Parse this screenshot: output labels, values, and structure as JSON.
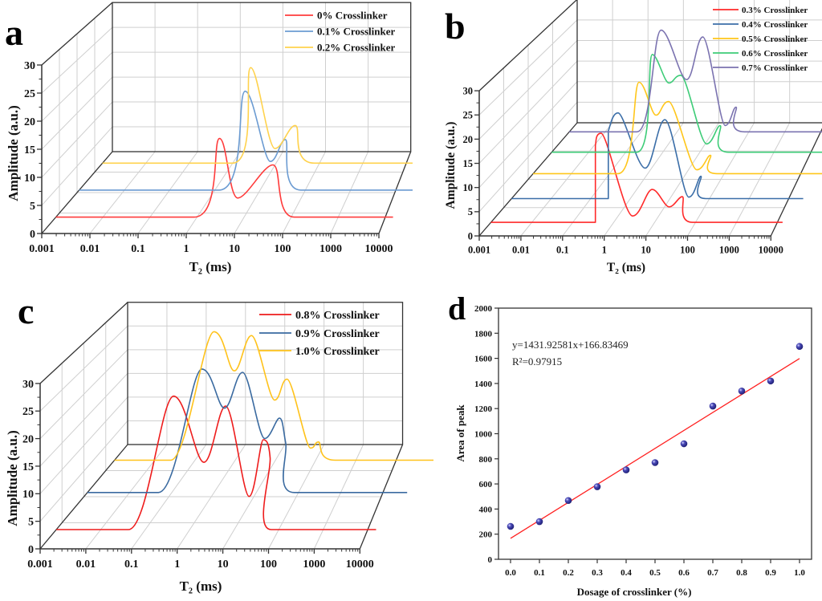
{
  "chart_data": [
    {
      "panel": "a",
      "type": "line",
      "style": "3d-waterfall",
      "xlabel": "T₂ (ms)",
      "ylabel": "Amplitude (a.u.)",
      "xscale": "log",
      "xlim": [
        0.001,
        10000
      ],
      "ylim": [
        0,
        30
      ],
      "xticks": [
        "0.001",
        "0.01",
        "0.1",
        "1",
        "10",
        "100",
        "1000",
        "10000"
      ],
      "yticks": [
        "0",
        "5",
        "10",
        "15",
        "20",
        "25",
        "30"
      ],
      "grid": true,
      "legend_position": "top-right",
      "series": [
        {
          "name": "0% Crosslinker",
          "color": "#ff3b3b",
          "points": [
            [
              0.001,
              0
            ],
            [
              0.74,
              0
            ],
            [
              2.5,
              14
            ],
            [
              6,
              3.4
            ],
            [
              32,
              9.3
            ],
            [
              89,
              0
            ],
            [
              10000,
              0
            ]
          ]
        },
        {
          "name": "0.1% Crosslinker",
          "color": "#6b9bd2",
          "points": [
            [
              0.001,
              0
            ],
            [
              0.8,
              0
            ],
            [
              2.8,
              17.6
            ],
            [
              9.3,
              5.1
            ],
            [
              19,
              9
            ],
            [
              40,
              0
            ],
            [
              10000,
              0
            ]
          ]
        },
        {
          "name": "0.2% Crosslinker",
          "color": "#ffd24d",
          "points": [
            [
              0.001,
              0
            ],
            [
              0.5,
              0
            ],
            [
              1.2,
              17
            ],
            [
              3.8,
              2.6
            ],
            [
              10,
              6.7
            ],
            [
              25,
              0
            ],
            [
              10000,
              0
            ]
          ]
        }
      ]
    },
    {
      "panel": "b",
      "type": "line",
      "style": "3d-waterfall",
      "xlabel": "T₂ (ms)",
      "ylabel": "Amplitude (a.u.)",
      "xscale": "log",
      "xlim": [
        0.001,
        10000
      ],
      "ylim": [
        0,
        30
      ],
      "xticks": [
        "0.001",
        "0.01",
        "0.1",
        "1",
        "10",
        "100",
        "1000",
        "10000"
      ],
      "yticks": [
        "0",
        "5",
        "10",
        "15",
        "20",
        "25",
        "30"
      ],
      "grid": true,
      "legend_position": "top-right",
      "series": [
        {
          "name": "0.3% Crosslinker",
          "color": "#ff2a2a",
          "points": [
            [
              0.001,
              0
            ],
            [
              0.32,
              0
            ],
            [
              0.32,
              16
            ],
            [
              0.44,
              18.4
            ],
            [
              2.5,
              1.3
            ],
            [
              7.4,
              6.8
            ],
            [
              19,
              3.2
            ],
            [
              39,
              5.3
            ],
            [
              69,
              0
            ],
            [
              10000,
              0
            ]
          ]
        },
        {
          "name": "0.4% Crosslinker",
          "color": "#3b6ea8",
          "points": [
            [
              0.001,
              0
            ],
            [
              0.21,
              0
            ],
            [
              0.21,
              14
            ],
            [
              0.36,
              17.7
            ],
            [
              1.6,
              6.3
            ],
            [
              4.8,
              16.3
            ],
            [
              18,
              0.3
            ],
            [
              35,
              4.6
            ],
            [
              46,
              0
            ],
            [
              10000,
              0
            ]
          ]
        },
        {
          "name": "0.5% Crosslinker",
          "color": "#ffc61a",
          "points": [
            [
              0.001,
              0
            ],
            [
              0.11,
              0
            ],
            [
              0.35,
              18.9
            ],
            [
              0.89,
              12.1
            ],
            [
              1.8,
              14.9
            ],
            [
              8.5,
              0.8
            ],
            [
              18,
              3.8
            ],
            [
              26,
              0
            ],
            [
              10000,
              0
            ]
          ]
        },
        {
          "name": "0.6% Crosslinker",
          "color": "#3dcc77",
          "points": [
            [
              0.001,
              0
            ],
            [
              0.11,
              0
            ],
            [
              0.26,
              20.2
            ],
            [
              0.65,
              14.3
            ],
            [
              1.26,
              15.9
            ],
            [
              5.2,
              1.7
            ],
            [
              11,
              5.5
            ],
            [
              18,
              0
            ],
            [
              10000,
              0
            ]
          ]
        },
        {
          "name": "0.7% Crosslinker",
          "color": "#7b73b0",
          "points": [
            [
              0.001,
              0
            ],
            [
              0.042,
              0
            ],
            [
              0.16,
              21
            ],
            [
              0.65,
              10.8
            ],
            [
              1.6,
              19.6
            ],
            [
              5.5,
              1.3
            ],
            [
              10,
              5.1
            ],
            [
              16,
              0
            ],
            [
              10000,
              0
            ]
          ]
        }
      ]
    },
    {
      "panel": "c",
      "type": "line",
      "style": "3d-waterfall",
      "xlabel": "T₂ (ms)",
      "ylabel": "Amplitude (a.u.)",
      "xscale": "log",
      "xlim": [
        0.001,
        10000
      ],
      "ylim": [
        0,
        30
      ],
      "xticks": [
        "0.001",
        "0.01",
        "0.1",
        "1",
        "10",
        "100",
        "1000",
        "10000"
      ],
      "yticks": [
        "0",
        "5",
        "10",
        "15",
        "20",
        "25",
        "30"
      ],
      "grid": true,
      "legend_position": "top-right",
      "series": [
        {
          "name": "0.8% Crosslinker",
          "color": "#ee1c1c",
          "points": [
            [
              0.001,
              0
            ],
            [
              0.038,
              0
            ],
            [
              0.37,
              24.2
            ],
            [
              1.7,
              12.2
            ],
            [
              5.1,
              22.4
            ],
            [
              16.6,
              6
            ],
            [
              34,
              16.3
            ],
            [
              48,
              13
            ],
            [
              51,
              0
            ],
            [
              10000,
              0
            ]
          ]
        },
        {
          "name": "0.9% Crosslinker",
          "color": "#3a6aa0",
          "points": [
            [
              0.001,
              0
            ],
            [
              0.036,
              0
            ],
            [
              0.32,
              22.4
            ],
            [
              1.0,
              15.3
            ],
            [
              2.5,
              21.8
            ],
            [
              7.6,
              9.8
            ],
            [
              16,
              13.5
            ],
            [
              22,
              9
            ],
            [
              34,
              0
            ],
            [
              10000,
              0
            ]
          ]
        },
        {
          "name": "1.0% Crosslinker",
          "color": "#ffc21a",
          "points": [
            [
              0.001,
              0
            ],
            [
              0.017,
              0
            ],
            [
              0.15,
              23.3
            ],
            [
              0.42,
              16.2
            ],
            [
              1.0,
              22.6
            ],
            [
              3.2,
              10.9
            ],
            [
              6,
              14.7
            ],
            [
              19.5,
              2.2
            ],
            [
              29,
              3.3
            ],
            [
              68,
              0
            ],
            [
              10000,
              0
            ]
          ]
        }
      ]
    },
    {
      "panel": "d",
      "type": "scatter",
      "xlabel": "Dosage of crosslinker (%)",
      "ylabel": "Area of peak",
      "xlim": [
        0,
        1.0
      ],
      "ylim": [
        0,
        2000
      ],
      "xticks": [
        "0.0",
        "0.1",
        "0.2",
        "0.3",
        "0.4",
        "0.5",
        "0.6",
        "0.7",
        "0.8",
        "0.9",
        "1.0"
      ],
      "yticks": [
        "0",
        "200",
        "400",
        "600",
        "800",
        "1000",
        "1200",
        "1400",
        "1600",
        "1800",
        "2000"
      ],
      "grid": false,
      "x": [
        0.0,
        0.1,
        0.2,
        0.3,
        0.4,
        0.5,
        0.6,
        0.7,
        0.8,
        0.9,
        1.0
      ],
      "y": [
        262,
        300,
        468,
        578,
        712,
        770,
        920,
        1220,
        1340,
        1420,
        1695
      ],
      "marker_color": "#2e2e9a",
      "fit": {
        "slope": 1431.92581,
        "intercept": 166.83469,
        "color": "#ff2020"
      },
      "annotations": [
        "y=1431.92581x+166.83469",
        "R²=0.97915"
      ]
    }
  ]
}
